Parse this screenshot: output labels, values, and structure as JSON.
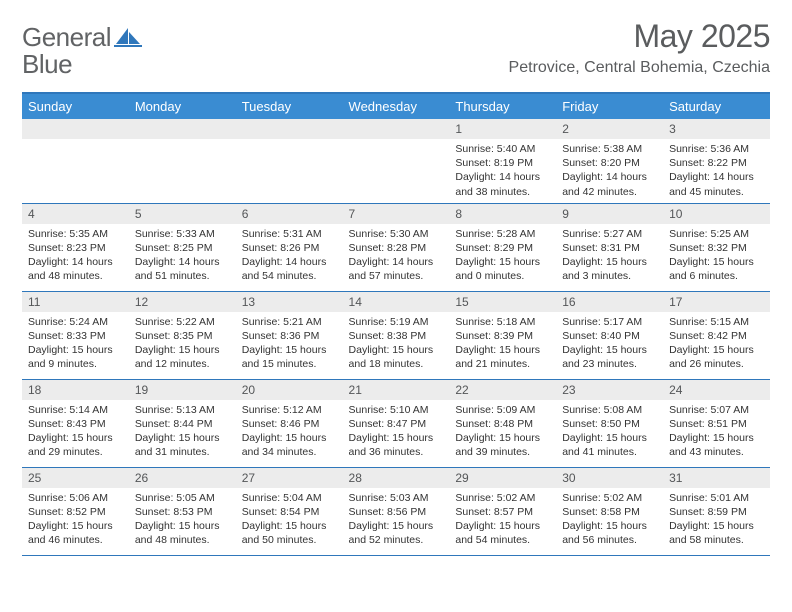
{
  "logo": {
    "word1": "General",
    "word2": "Blue"
  },
  "title": "May 2025",
  "location": "Petrovice, Central Bohemia, Czechia",
  "colors": {
    "brand_blue": "#2f77bb",
    "header_bg": "#3a8cd2",
    "header_text": "#ffffff",
    "daynum_bg": "#ececec",
    "text": "#333333",
    "title_text": "#5a5c5e",
    "logo_gray": "#616365",
    "page_bg": "#ffffff"
  },
  "days_of_week": [
    "Sunday",
    "Monday",
    "Tuesday",
    "Wednesday",
    "Thursday",
    "Friday",
    "Saturday"
  ],
  "weeks": [
    [
      null,
      null,
      null,
      null,
      {
        "n": "1",
        "sunrise": "5:40 AM",
        "sunset": "8:19 PM",
        "daylight": "14 hours and 38 minutes."
      },
      {
        "n": "2",
        "sunrise": "5:38 AM",
        "sunset": "8:20 PM",
        "daylight": "14 hours and 42 minutes."
      },
      {
        "n": "3",
        "sunrise": "5:36 AM",
        "sunset": "8:22 PM",
        "daylight": "14 hours and 45 minutes."
      }
    ],
    [
      {
        "n": "4",
        "sunrise": "5:35 AM",
        "sunset": "8:23 PM",
        "daylight": "14 hours and 48 minutes."
      },
      {
        "n": "5",
        "sunrise": "5:33 AM",
        "sunset": "8:25 PM",
        "daylight": "14 hours and 51 minutes."
      },
      {
        "n": "6",
        "sunrise": "5:31 AM",
        "sunset": "8:26 PM",
        "daylight": "14 hours and 54 minutes."
      },
      {
        "n": "7",
        "sunrise": "5:30 AM",
        "sunset": "8:28 PM",
        "daylight": "14 hours and 57 minutes."
      },
      {
        "n": "8",
        "sunrise": "5:28 AM",
        "sunset": "8:29 PM",
        "daylight": "15 hours and 0 minutes."
      },
      {
        "n": "9",
        "sunrise": "5:27 AM",
        "sunset": "8:31 PM",
        "daylight": "15 hours and 3 minutes."
      },
      {
        "n": "10",
        "sunrise": "5:25 AM",
        "sunset": "8:32 PM",
        "daylight": "15 hours and 6 minutes."
      }
    ],
    [
      {
        "n": "11",
        "sunrise": "5:24 AM",
        "sunset": "8:33 PM",
        "daylight": "15 hours and 9 minutes."
      },
      {
        "n": "12",
        "sunrise": "5:22 AM",
        "sunset": "8:35 PM",
        "daylight": "15 hours and 12 minutes."
      },
      {
        "n": "13",
        "sunrise": "5:21 AM",
        "sunset": "8:36 PM",
        "daylight": "15 hours and 15 minutes."
      },
      {
        "n": "14",
        "sunrise": "5:19 AM",
        "sunset": "8:38 PM",
        "daylight": "15 hours and 18 minutes."
      },
      {
        "n": "15",
        "sunrise": "5:18 AM",
        "sunset": "8:39 PM",
        "daylight": "15 hours and 21 minutes."
      },
      {
        "n": "16",
        "sunrise": "5:17 AM",
        "sunset": "8:40 PM",
        "daylight": "15 hours and 23 minutes."
      },
      {
        "n": "17",
        "sunrise": "5:15 AM",
        "sunset": "8:42 PM",
        "daylight": "15 hours and 26 minutes."
      }
    ],
    [
      {
        "n": "18",
        "sunrise": "5:14 AM",
        "sunset": "8:43 PM",
        "daylight": "15 hours and 29 minutes."
      },
      {
        "n": "19",
        "sunrise": "5:13 AM",
        "sunset": "8:44 PM",
        "daylight": "15 hours and 31 minutes."
      },
      {
        "n": "20",
        "sunrise": "5:12 AM",
        "sunset": "8:46 PM",
        "daylight": "15 hours and 34 minutes."
      },
      {
        "n": "21",
        "sunrise": "5:10 AM",
        "sunset": "8:47 PM",
        "daylight": "15 hours and 36 minutes."
      },
      {
        "n": "22",
        "sunrise": "5:09 AM",
        "sunset": "8:48 PM",
        "daylight": "15 hours and 39 minutes."
      },
      {
        "n": "23",
        "sunrise": "5:08 AM",
        "sunset": "8:50 PM",
        "daylight": "15 hours and 41 minutes."
      },
      {
        "n": "24",
        "sunrise": "5:07 AM",
        "sunset": "8:51 PM",
        "daylight": "15 hours and 43 minutes."
      }
    ],
    [
      {
        "n": "25",
        "sunrise": "5:06 AM",
        "sunset": "8:52 PM",
        "daylight": "15 hours and 46 minutes."
      },
      {
        "n": "26",
        "sunrise": "5:05 AM",
        "sunset": "8:53 PM",
        "daylight": "15 hours and 48 minutes."
      },
      {
        "n": "27",
        "sunrise": "5:04 AM",
        "sunset": "8:54 PM",
        "daylight": "15 hours and 50 minutes."
      },
      {
        "n": "28",
        "sunrise": "5:03 AM",
        "sunset": "8:56 PM",
        "daylight": "15 hours and 52 minutes."
      },
      {
        "n": "29",
        "sunrise": "5:02 AM",
        "sunset": "8:57 PM",
        "daylight": "15 hours and 54 minutes."
      },
      {
        "n": "30",
        "sunrise": "5:02 AM",
        "sunset": "8:58 PM",
        "daylight": "15 hours and 56 minutes."
      },
      {
        "n": "31",
        "sunrise": "5:01 AM",
        "sunset": "8:59 PM",
        "daylight": "15 hours and 58 minutes."
      }
    ]
  ],
  "labels": {
    "sunrise_prefix": "Sunrise: ",
    "sunset_prefix": "Sunset: ",
    "daylight_prefix": "Daylight: "
  }
}
